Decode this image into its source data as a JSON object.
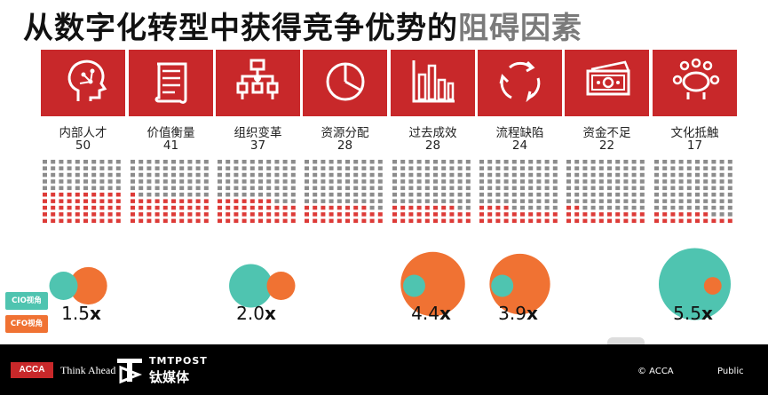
{
  "title": {
    "main": "从数字化转型中获得竞争优势的",
    "highlight": "阻碍因素"
  },
  "chart_data": {
    "type": "bar",
    "categories": [
      "内部人才",
      "价值衡量",
      "组织变革",
      "资源分配",
      "过去成效",
      "流程缺陷",
      "资金不足",
      "文化抵触"
    ],
    "values": [
      50,
      41,
      37,
      28,
      28,
      24,
      22,
      17
    ],
    "icons": [
      "head-circuit-icon",
      "scroll-document-icon",
      "org-chart-icon",
      "pie-chart-icon",
      "bar-chart-icon",
      "process-cycle-icon",
      "money-bill-icon",
      "meeting-table-icon"
    ],
    "ratio_series": [
      {
        "category": "内部人才",
        "label": "1.5",
        "suffix": "x",
        "value": 1.5
      },
      {
        "category": "组织变革",
        "label": "2.0",
        "suffix": "x",
        "value": 2.0
      },
      {
        "category": "过去成效",
        "label": "4.4",
        "suffix": "x",
        "value": 4.4,
        "larger": "cfo"
      },
      {
        "category": "流程缺陷",
        "label": "3.9",
        "suffix": "x",
        "value": 3.9,
        "larger": "cfo"
      },
      {
        "category": "文化抵触",
        "label": "5.5",
        "suffix": "x",
        "value": 5.5,
        "larger": "cio"
      }
    ],
    "legend": [
      {
        "key": "cio",
        "label": "CIO视角",
        "color": "#4fc4b0"
      },
      {
        "key": "cfo",
        "label": "CFO视角",
        "color": "#f07233"
      }
    ],
    "colors": {
      "tile": "#c8282a",
      "dot_filled": "#dd3a37",
      "dot_empty": "#8c8c8c"
    }
  },
  "footer": {
    "acca": "ACCA",
    "tagline": "Think Ahead",
    "tmt_en": "TMTPOST",
    "tmt_cn": "钛媒体",
    "copyright": "© ACCA",
    "classification": "Public"
  }
}
